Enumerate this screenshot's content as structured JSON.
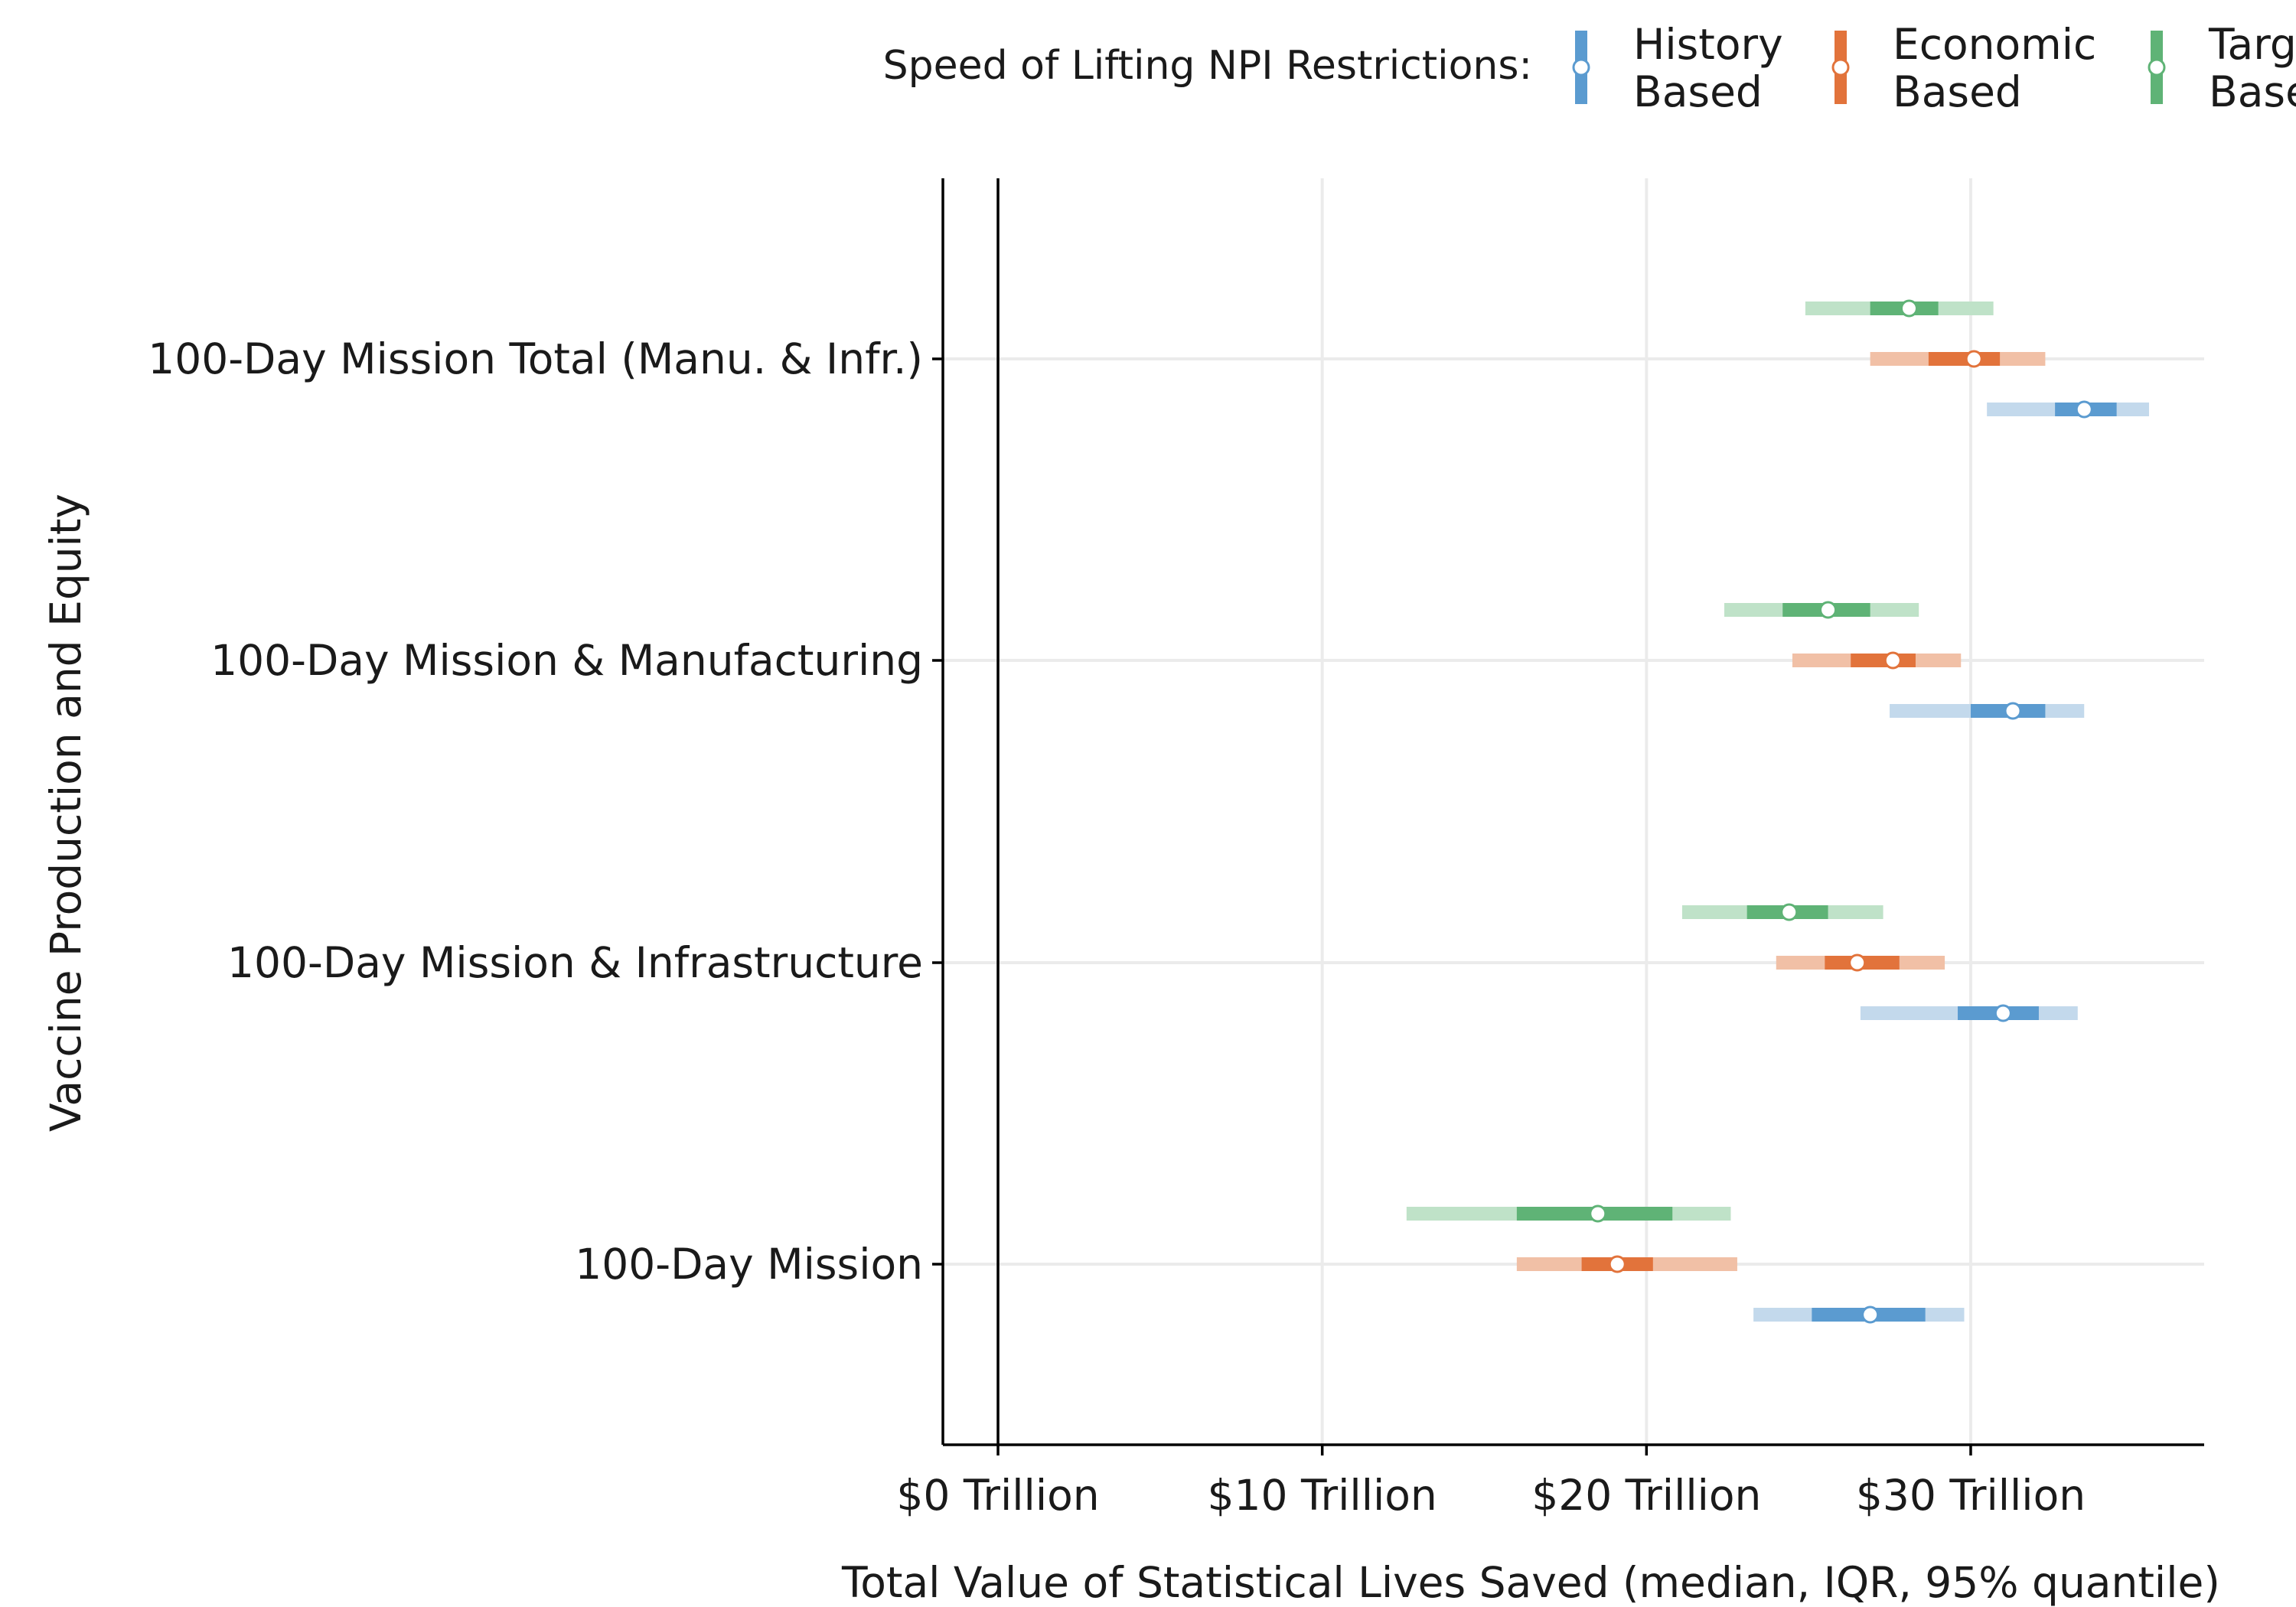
{
  "chart_data": {
    "type": "interval",
    "xlabel": "Total Value of Statistical Lives Saved (median, IQR, 95% quantile)",
    "ylabel": "Vaccine Production and Equity",
    "xlim": [
      -1.7,
      37.2
    ],
    "x_ticks": [
      {
        "value": 0,
        "label": "$0 Trillion"
      },
      {
        "value": 10,
        "label": "$10 Trillion"
      },
      {
        "value": 20,
        "label": "$20 Trillion"
      },
      {
        "value": 30,
        "label": "$30 Trillion"
      }
    ],
    "reference_line": 0,
    "grid": true,
    "categories": [
      "100-Day Mission Total (Manu. & Infr.)",
      "100-Day Mission & Manufacturing",
      "100-Day Mission & Infrastructure",
      "100-Day Mission"
    ],
    "legend": {
      "title": "Speed of Lifting NPI Restrictions:",
      "position": "top"
    },
    "series": [
      {
        "name_lines": [
          "History",
          "Based"
        ],
        "color": "#5b9bd0",
        "light": "#c3d9ec",
        "values": [
          {
            "median": 33.5,
            "iqr": [
              32.6,
              34.5
            ],
            "q95": [
              30.5,
              35.5
            ]
          },
          {
            "median": 31.3,
            "iqr": [
              30.0,
              32.3
            ],
            "q95": [
              27.5,
              33.5
            ]
          },
          {
            "median": 31.0,
            "iqr": [
              29.6,
              32.1
            ],
            "q95": [
              26.6,
              33.3
            ]
          },
          {
            "median": 26.9,
            "iqr": [
              25.1,
              28.6
            ],
            "q95": [
              23.3,
              29.8
            ]
          }
        ]
      },
      {
        "name_lines": [
          "Economic",
          "Based"
        ],
        "color": "#e2733b",
        "light": "#f1c0a6",
        "values": [
          {
            "median": 30.1,
            "iqr": [
              28.7,
              30.9
            ],
            "q95": [
              26.9,
              32.3
            ]
          },
          {
            "median": 27.6,
            "iqr": [
              26.3,
              28.3
            ],
            "q95": [
              24.5,
              29.7
            ]
          },
          {
            "median": 26.5,
            "iqr": [
              25.5,
              27.8
            ],
            "q95": [
              24.0,
              29.2
            ]
          },
          {
            "median": 19.1,
            "iqr": [
              18.0,
              20.2
            ],
            "q95": [
              16.0,
              22.8
            ]
          }
        ]
      },
      {
        "name_lines": [
          "Targeted",
          "Based"
        ],
        "color": "#5fb376",
        "light": "#bfe2c8",
        "values": [
          {
            "median": 28.1,
            "iqr": [
              26.9,
              29.0
            ],
            "q95": [
              24.9,
              30.7
            ]
          },
          {
            "median": 25.6,
            "iqr": [
              24.2,
              26.9
            ],
            "q95": [
              22.4,
              28.4
            ]
          },
          {
            "median": 24.4,
            "iqr": [
              23.1,
              25.6
            ],
            "q95": [
              21.1,
              27.3
            ]
          },
          {
            "median": 18.5,
            "iqr": [
              16.0,
              20.8
            ],
            "q95": [
              12.6,
              22.6
            ]
          }
        ]
      }
    ]
  }
}
